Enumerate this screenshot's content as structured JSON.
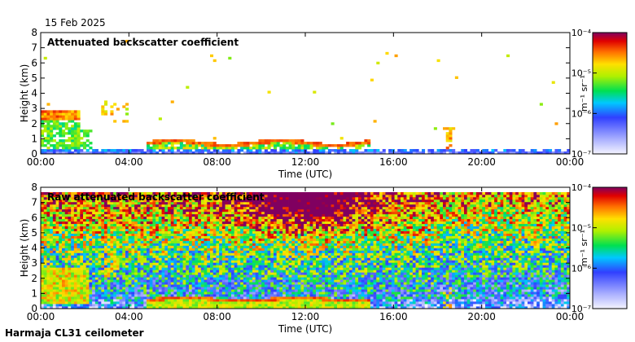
{
  "header": {
    "date": "15 Feb 2025"
  },
  "footer": {
    "station": "Harmaja CL31 ceilometer"
  },
  "chart_data": [
    {
      "type": "heatmap",
      "title": "Attenuated backscatter coefficient",
      "xlabel": "Time (UTC)",
      "ylabel": "Height (km)",
      "x_ticks": [
        "00:00",
        "04:00",
        "08:00",
        "12:00",
        "16:00",
        "20:00",
        "00:00"
      ],
      "x_range_hours": [
        0,
        24
      ],
      "y_ticks": [
        "0",
        "1",
        "2",
        "3",
        "4",
        "5",
        "6",
        "7",
        "8"
      ],
      "ylim_km": [
        0,
        8
      ],
      "colorbar": {
        "unit": "m⁻¹ sr⁻¹",
        "ticks": [
          "10⁻⁴",
          "10⁻⁵",
          "10⁻⁶",
          "10⁻⁷"
        ],
        "range_log10": [
          -7,
          -4
        ]
      },
      "features": [
        {
          "name": "boundary layer aerosol",
          "t_start": 0,
          "t_end": 24,
          "h_top_km": 0.35,
          "log10_value": -6.1
        },
        {
          "name": "elevated layer",
          "t_start": 0,
          "t_end": 1.8,
          "h_bottom_km": 0.2,
          "h_top_km": 2.9,
          "log10_value": -5.3
        },
        {
          "name": "low cloud base",
          "t_start": 4.8,
          "t_end": 15.0,
          "h_km": 0.7,
          "log10_value": -4.2
        },
        {
          "name": "mid-level cloud",
          "t_start": 2.7,
          "t_end": 4.0,
          "h_bottom_km": 2.3,
          "h_top_km": 4.1,
          "log10_value": -5.5
        },
        {
          "name": "cloud near 18h",
          "t_start": 18.2,
          "t_end": 18.7,
          "h_bottom_km": 0.4,
          "h_top_km": 1.7,
          "log10_value": -4.6
        }
      ]
    },
    {
      "type": "heatmap",
      "title": "Raw attenuated backscatter coefficient",
      "xlabel": "Time (UTC)",
      "ylabel": "Height (km)",
      "x_ticks": [
        "00:00",
        "04:00",
        "08:00",
        "12:00",
        "16:00",
        "20:00",
        "00:00"
      ],
      "x_range_hours": [
        0,
        24
      ],
      "y_ticks": [
        "0",
        "1",
        "2",
        "3",
        "4",
        "5",
        "6",
        "7",
        "8"
      ],
      "ylim_km": [
        0,
        8
      ],
      "colorbar": {
        "unit": "m⁻¹ sr⁻¹",
        "ticks": [
          "10⁻⁴",
          "10⁻⁵",
          "10⁻⁶",
          "10⁻⁷"
        ],
        "range_log10": [
          -7,
          -4
        ]
      },
      "features": [
        {
          "name": "noise field",
          "t_start": 0,
          "t_end": 24,
          "h_bottom_km": 0.3,
          "h_top_km": 7.7,
          "log10_value": -5.4
        },
        {
          "name": "elevated layer",
          "t_start": 0,
          "t_end": 2.2,
          "h_bottom_km": 0.3,
          "h_top_km": 2.8,
          "log10_value": -5.2
        },
        {
          "name": "low cloud base",
          "t_start": 4.8,
          "t_end": 15.0,
          "h_km": 0.6,
          "log10_value": -4.2
        },
        {
          "name": "high noise maximum",
          "t_start": 10,
          "t_end": 14,
          "h_bottom_km": 5.5,
          "h_top_km": 7.7,
          "log10_value": -4.5
        }
      ]
    }
  ]
}
